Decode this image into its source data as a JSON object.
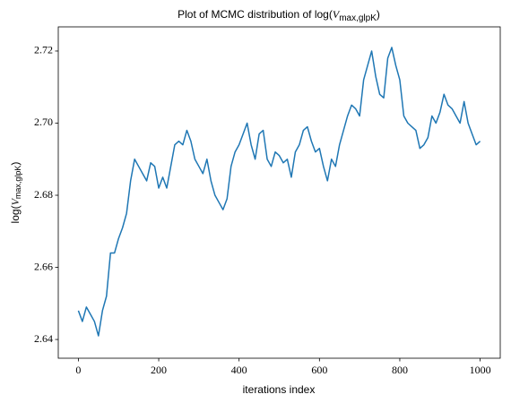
{
  "chart_data": {
    "type": "line",
    "title": [
      "Plot of MCMC distribution of log(",
      "V",
      "max,glpK",
      ")"
    ],
    "x_label": "iterations index",
    "y_label": [
      "log(",
      "V",
      "max,glpK",
      ")"
    ],
    "x": [
      0,
      10,
      20,
      30,
      40,
      50,
      60,
      70,
      80,
      90,
      100,
      110,
      120,
      130,
      140,
      150,
      160,
      170,
      180,
      190,
      200,
      210,
      220,
      230,
      240,
      250,
      260,
      270,
      280,
      290,
      300,
      310,
      320,
      330,
      340,
      350,
      360,
      370,
      380,
      390,
      400,
      410,
      420,
      430,
      440,
      450,
      460,
      470,
      480,
      490,
      500,
      510,
      520,
      530,
      540,
      550,
      560,
      570,
      580,
      590,
      600,
      610,
      620,
      630,
      640,
      650,
      660,
      670,
      680,
      690,
      700,
      710,
      720,
      730,
      740,
      750,
      760,
      770,
      780,
      790,
      800,
      810,
      820,
      830,
      840,
      850,
      860,
      870,
      880,
      890,
      900,
      910,
      920,
      930,
      940,
      950,
      960,
      970,
      980,
      990,
      1000
    ],
    "series": [
      {
        "color": "#1f77b4",
        "values": [
          2.648,
          2.645,
          2.649,
          2.647,
          2.645,
          2.641,
          2.648,
          2.652,
          2.664,
          2.664,
          2.668,
          2.671,
          2.675,
          2.684,
          2.69,
          2.688,
          2.686,
          2.684,
          2.689,
          2.688,
          2.682,
          2.685,
          2.682,
          2.688,
          2.694,
          2.695,
          2.694,
          2.698,
          2.695,
          2.69,
          2.688,
          2.686,
          2.69,
          2.684,
          2.68,
          2.678,
          2.676,
          2.679,
          2.688,
          2.692,
          2.694,
          2.697,
          2.7,
          2.694,
          2.69,
          2.697,
          2.698,
          2.69,
          2.688,
          2.692,
          2.691,
          2.689,
          2.69,
          2.685,
          2.692,
          2.694,
          2.698,
          2.699,
          2.695,
          2.692,
          2.693,
          2.688,
          2.684,
          2.69,
          2.688,
          2.694,
          2.698,
          2.702,
          2.705,
          2.704,
          2.702,
          2.712,
          2.716,
          2.72,
          2.713,
          2.708,
          2.707,
          2.718,
          2.721,
          2.716,
          2.712,
          2.702,
          2.7,
          2.699,
          2.698,
          2.693,
          2.694,
          2.696,
          2.702,
          2.7,
          2.703,
          2.708,
          2.705,
          2.704,
          2.702,
          2.7,
          2.706,
          2.7,
          2.697,
          2.694,
          2.695
        ]
      }
    ],
    "xlim": [
      -50,
      1050
    ],
    "xticks": [
      0,
      200,
      400,
      600,
      800,
      1000
    ],
    "ylim": [
      2.6348,
      2.7267
    ],
    "yticks": [
      2.64,
      2.66,
      2.68,
      {
        "value": 2.7,
        "label": "2.70"
      },
      2.72
    ],
    "grid": false
  }
}
